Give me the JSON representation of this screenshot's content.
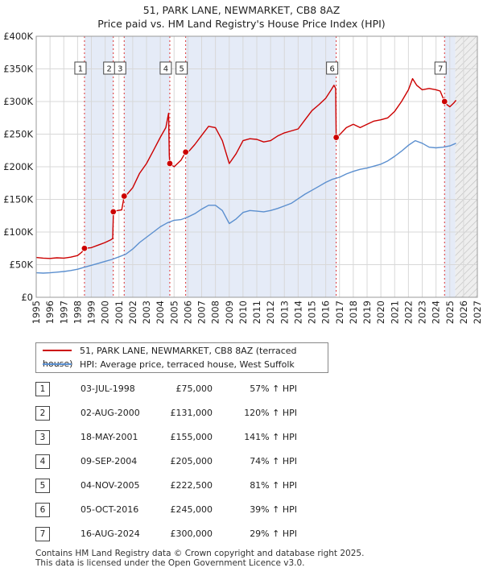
{
  "title_line1": "51, PARK LANE, NEWMARKET, CB8 8AZ",
  "title_line2": "Price paid vs. HM Land Registry's House Price Index (HPI)",
  "chart_data": {
    "type": "line",
    "title": "51, PARK LANE, NEWMARKET, CB8 8AZ — Price paid vs. HM Land Registry's House Price Index (HPI)",
    "xlim": [
      1995,
      2027
    ],
    "ylim": [
      0,
      400000
    ],
    "x_ticks": [
      1995,
      1996,
      1997,
      1998,
      1999,
      2000,
      2001,
      2002,
      2003,
      2004,
      2005,
      2006,
      2007,
      2008,
      2009,
      2010,
      2011,
      2012,
      2013,
      2014,
      2015,
      2016,
      2017,
      2018,
      2019,
      2020,
      2021,
      2022,
      2023,
      2024,
      2025,
      2026,
      2027
    ],
    "y_ticks": [
      0,
      50000,
      100000,
      150000,
      200000,
      250000,
      300000,
      350000,
      400000
    ],
    "y_tick_labels": [
      "£0",
      "£50K",
      "£100K",
      "£150K",
      "£200K",
      "£250K",
      "£300K",
      "£350K",
      "£400K"
    ],
    "forecast_start": 2025.4,
    "series": [
      {
        "name": "51, PARK LANE, NEWMARKET, CB8 8AZ (terraced house)",
        "color": "#cc0000",
        "points": [
          [
            1995.0,
            61000
          ],
          [
            1995.5,
            60000
          ],
          [
            1996.0,
            59500
          ],
          [
            1996.5,
            60500
          ],
          [
            1997.0,
            60000
          ],
          [
            1997.5,
            61500
          ],
          [
            1998.0,
            64000
          ],
          [
            1998.3,
            69000
          ],
          [
            1998.5,
            75000
          ],
          [
            1999.0,
            76000
          ],
          [
            1999.5,
            80000
          ],
          [
            2000.0,
            84000
          ],
          [
            2000.4,
            88000
          ],
          [
            2000.55,
            90000
          ],
          [
            2000.6,
            131000
          ],
          [
            2000.9,
            133000
          ],
          [
            2001.2,
            134000
          ],
          [
            2001.38,
            155000
          ],
          [
            2001.6,
            158000
          ],
          [
            2002.0,
            168000
          ],
          [
            2002.5,
            190000
          ],
          [
            2003.0,
            205000
          ],
          [
            2003.5,
            225000
          ],
          [
            2004.0,
            245000
          ],
          [
            2004.4,
            260000
          ],
          [
            2004.6,
            282000
          ],
          [
            2004.65,
            218000
          ],
          [
            2004.69,
            205000
          ],
          [
            2005.0,
            200000
          ],
          [
            2005.5,
            210000
          ],
          [
            2005.84,
            222500
          ],
          [
            2006.0,
            222000
          ],
          [
            2006.5,
            234000
          ],
          [
            2007.0,
            248000
          ],
          [
            2007.5,
            262000
          ],
          [
            2008.0,
            260000
          ],
          [
            2008.5,
            240000
          ],
          [
            2009.0,
            205000
          ],
          [
            2009.5,
            220000
          ],
          [
            2010.0,
            240000
          ],
          [
            2010.5,
            243000
          ],
          [
            2011.0,
            242000
          ],
          [
            2011.5,
            238000
          ],
          [
            2012.0,
            240000
          ],
          [
            2012.5,
            247000
          ],
          [
            2013.0,
            252000
          ],
          [
            2013.5,
            255000
          ],
          [
            2014.0,
            258000
          ],
          [
            2014.5,
            272000
          ],
          [
            2015.0,
            286000
          ],
          [
            2015.5,
            295000
          ],
          [
            2016.0,
            305000
          ],
          [
            2016.4,
            318000
          ],
          [
            2016.6,
            325000
          ],
          [
            2016.72,
            320000
          ],
          [
            2016.76,
            245000
          ],
          [
            2017.0,
            249000
          ],
          [
            2017.5,
            260000
          ],
          [
            2018.0,
            265000
          ],
          [
            2018.5,
            260000
          ],
          [
            2019.0,
            265000
          ],
          [
            2019.5,
            270000
          ],
          [
            2020.0,
            272000
          ],
          [
            2020.5,
            275000
          ],
          [
            2021.0,
            285000
          ],
          [
            2021.5,
            300000
          ],
          [
            2022.0,
            318000
          ],
          [
            2022.3,
            335000
          ],
          [
            2022.6,
            325000
          ],
          [
            2023.0,
            318000
          ],
          [
            2023.5,
            320000
          ],
          [
            2024.0,
            318000
          ],
          [
            2024.3,
            316000
          ],
          [
            2024.62,
            300000
          ],
          [
            2024.8,
            295000
          ],
          [
            2025.0,
            292000
          ],
          [
            2025.3,
            298000
          ],
          [
            2025.45,
            302000
          ]
        ]
      },
      {
        "name": "HPI: Average price, terraced house, West Suffolk",
        "color": "#5b8fcf",
        "points": [
          [
            1995.0,
            37500
          ],
          [
            1995.5,
            37000
          ],
          [
            1996.0,
            37500
          ],
          [
            1996.5,
            38500
          ],
          [
            1997.0,
            39500
          ],
          [
            1997.5,
            41000
          ],
          [
            1998.0,
            43000
          ],
          [
            1998.5,
            46000
          ],
          [
            1999.0,
            49000
          ],
          [
            1999.5,
            52000
          ],
          [
            2000.0,
            55000
          ],
          [
            2000.5,
            58000
          ],
          [
            2001.0,
            62000
          ],
          [
            2001.5,
            66000
          ],
          [
            2002.0,
            74000
          ],
          [
            2002.5,
            84000
          ],
          [
            2003.0,
            92000
          ],
          [
            2003.5,
            100000
          ],
          [
            2004.0,
            108000
          ],
          [
            2004.5,
            114000
          ],
          [
            2005.0,
            118000
          ],
          [
            2005.5,
            119000
          ],
          [
            2006.0,
            123000
          ],
          [
            2006.5,
            128000
          ],
          [
            2007.0,
            135000
          ],
          [
            2007.5,
            141000
          ],
          [
            2008.0,
            141000
          ],
          [
            2008.5,
            133000
          ],
          [
            2009.0,
            113000
          ],
          [
            2009.5,
            120000
          ],
          [
            2010.0,
            130000
          ],
          [
            2010.5,
            133000
          ],
          [
            2011.0,
            132000
          ],
          [
            2011.5,
            131000
          ],
          [
            2012.0,
            133000
          ],
          [
            2012.5,
            136000
          ],
          [
            2013.0,
            140000
          ],
          [
            2013.5,
            144000
          ],
          [
            2014.0,
            151000
          ],
          [
            2014.5,
            158000
          ],
          [
            2015.0,
            164000
          ],
          [
            2015.5,
            170000
          ],
          [
            2016.0,
            176000
          ],
          [
            2016.5,
            181000
          ],
          [
            2017.0,
            184000
          ],
          [
            2017.5,
            189000
          ],
          [
            2018.0,
            193000
          ],
          [
            2018.5,
            196000
          ],
          [
            2019.0,
            198000
          ],
          [
            2019.5,
            201000
          ],
          [
            2020.0,
            204000
          ],
          [
            2020.5,
            209000
          ],
          [
            2021.0,
            216000
          ],
          [
            2021.5,
            224000
          ],
          [
            2022.0,
            233000
          ],
          [
            2022.5,
            240000
          ],
          [
            2023.0,
            236000
          ],
          [
            2023.5,
            230000
          ],
          [
            2024.0,
            229000
          ],
          [
            2024.5,
            230000
          ],
          [
            2025.0,
            232000
          ],
          [
            2025.45,
            236000
          ]
        ]
      }
    ],
    "sales": [
      {
        "n": "1",
        "x": 1998.5,
        "y": 75000
      },
      {
        "n": "2",
        "x": 2000.59,
        "y": 131000
      },
      {
        "n": "3",
        "x": 2001.38,
        "y": 155000
      },
      {
        "n": "4",
        "x": 2004.69,
        "y": 205000
      },
      {
        "n": "5",
        "x": 2005.84,
        "y": 222500
      },
      {
        "n": "6",
        "x": 2016.76,
        "y": 245000
      },
      {
        "n": "7",
        "x": 2024.62,
        "y": 300000
      }
    ]
  },
  "legend": {
    "property": "51, PARK LANE, NEWMARKET, CB8 8AZ (terraced house)",
    "hpi": "HPI: Average price, terraced house, West Suffolk"
  },
  "sales_table": [
    {
      "num": "1",
      "date": "03-JUL-1998",
      "price": "£75,000",
      "hpi": "57% ↑ HPI"
    },
    {
      "num": "2",
      "date": "02-AUG-2000",
      "price": "£131,000",
      "hpi": "120% ↑ HPI"
    },
    {
      "num": "3",
      "date": "18-MAY-2001",
      "price": "£155,000",
      "hpi": "141% ↑ HPI"
    },
    {
      "num": "4",
      "date": "09-SEP-2004",
      "price": "£205,000",
      "hpi": "74% ↑ HPI"
    },
    {
      "num": "5",
      "date": "04-NOV-2005",
      "price": "£222,500",
      "hpi": "81% ↑ HPI"
    },
    {
      "num": "6",
      "date": "05-OCT-2016",
      "price": "£245,000",
      "hpi": "39% ↑ HPI"
    },
    {
      "num": "7",
      "date": "16-AUG-2024",
      "price": "£300,000",
      "hpi": "29% ↑ HPI"
    }
  ],
  "footer": {
    "line1": "Contains HM Land Registry data © Crown copyright and database right 2025.",
    "line2": "This data is licensed under the Open Government Licence v3.0."
  }
}
